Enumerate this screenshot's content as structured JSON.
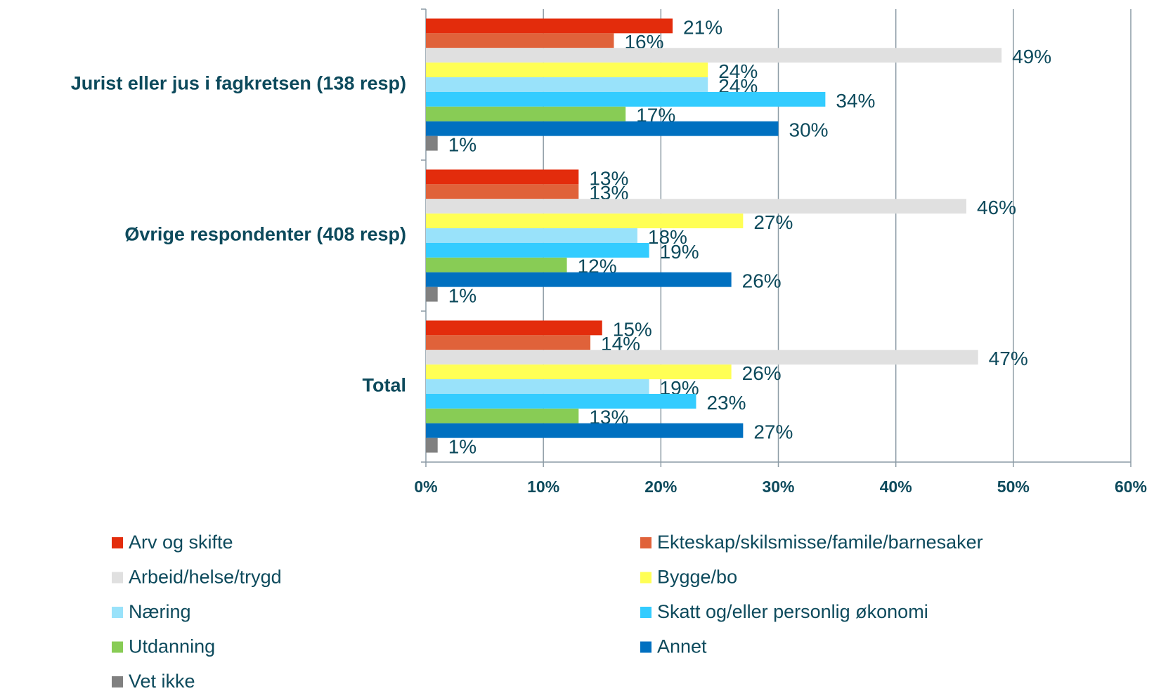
{
  "chart_data": {
    "type": "bar",
    "orientation": "horizontal",
    "categories": [
      "Jurist eller jus i fagkretsen (138 resp)",
      "Øvrige respondenter (408 resp)",
      "Total"
    ],
    "series": [
      {
        "name": "Arv og skifte",
        "color": "#e32c0c",
        "values": [
          21,
          13,
          15
        ],
        "value_labels": [
          "21%",
          "13%",
          "15%"
        ]
      },
      {
        "name": "Ekteskap/skilsmisse/famile/barnesaker",
        "color": "#e0623a",
        "values": [
          16,
          13,
          14
        ],
        "value_labels": [
          "16%",
          "13%",
          "14%"
        ]
      },
      {
        "name": "Arbeid/helse/trygd",
        "color": "#e0e0e0",
        "values": [
          49,
          46,
          47
        ],
        "value_labels": [
          "49%",
          "46%",
          "47%"
        ]
      },
      {
        "name": "Bygge/bo",
        "color": "#ffff55",
        "values": [
          24,
          27,
          26
        ],
        "value_labels": [
          "24%",
          "27%",
          "26%"
        ]
      },
      {
        "name": "Næring",
        "color": "#99e2fa",
        "values": [
          24,
          18,
          19
        ],
        "value_labels": [
          "24%",
          "18%",
          "19%"
        ]
      },
      {
        "name": "Skatt og/eller personlig økonomi",
        "color": "#33ccff",
        "values": [
          34,
          19,
          23
        ],
        "value_labels": [
          "34%",
          "19%",
          "23%"
        ]
      },
      {
        "name": "Utdanning",
        "color": "#88cc55",
        "values": [
          17,
          12,
          13
        ],
        "value_labels": [
          "17%",
          "12%",
          "13%"
        ]
      },
      {
        "name": "Annet",
        "color": "#0070c0",
        "values": [
          30,
          26,
          27
        ],
        "value_labels": [
          "30%",
          "26%",
          "27%"
        ]
      },
      {
        "name": "Vet ikke",
        "color": "#808080",
        "values": [
          1,
          1,
          1
        ],
        "value_labels": [
          "1%",
          "1%",
          "1%"
        ]
      }
    ],
    "xlim": [
      0,
      60
    ],
    "xticks": [
      {
        "value": 0,
        "label": "0%"
      },
      {
        "value": 10,
        "label": "10%"
      },
      {
        "value": 20,
        "label": "20%"
      },
      {
        "value": 30,
        "label": "30%"
      },
      {
        "value": 40,
        "label": "40%"
      },
      {
        "value": 50,
        "label": "50%"
      },
      {
        "value": 60,
        "label": "60%"
      }
    ],
    "grid": true,
    "legend": "bottom"
  }
}
